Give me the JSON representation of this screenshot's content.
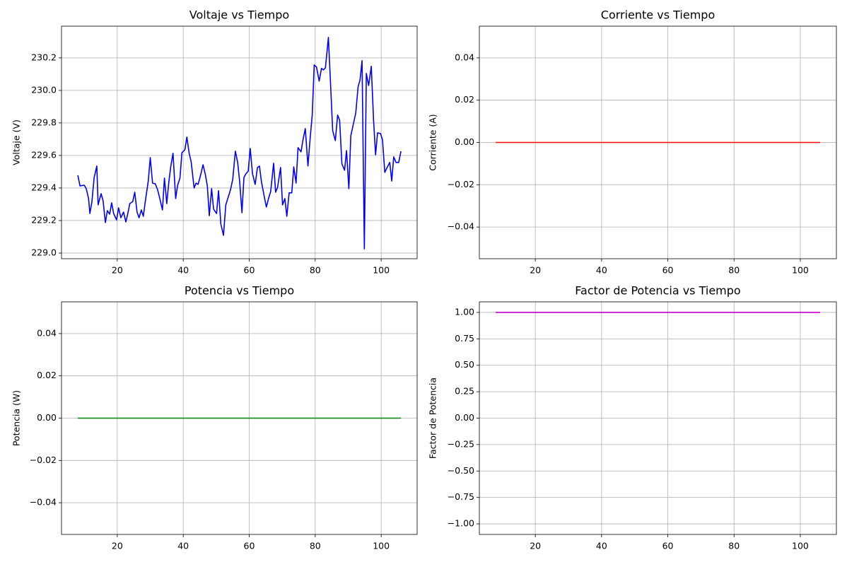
{
  "chart_data": [
    {
      "type": "line",
      "title": "Voltaje vs Tiempo",
      "ylabel": "Voltaje (V)",
      "grid": true,
      "x": [
        8.05,
        8.7,
        10.0,
        10.6,
        11.3,
        11.7,
        12.3,
        13.0,
        13.8,
        14.2,
        15.1,
        15.7,
        16.4,
        17.0,
        17.7,
        18.3,
        18.9,
        19.8,
        20.4,
        21.1,
        21.9,
        22.6,
        23.2,
        23.8,
        24.7,
        25.3,
        26.0,
        26.6,
        27.3,
        27.9,
        28.5,
        29.4,
        30.0,
        30.7,
        31.5,
        32.2,
        32.8,
        33.7,
        34.3,
        35.0,
        35.6,
        36.2,
        36.9,
        37.7,
        38.3,
        39.0,
        39.6,
        40.5,
        41.1,
        41.8,
        42.4,
        43.3,
        43.9,
        44.5,
        45.2,
        46.0,
        46.7,
        47.3,
        47.9,
        48.6,
        49.2,
        50.1,
        50.7,
        51.4,
        52.2,
        52.9,
        53.5,
        54.3,
        55.0,
        55.8,
        56.5,
        57.1,
        57.8,
        58.4,
        59.0,
        59.7,
        60.3,
        61.0,
        61.8,
        62.5,
        63.1,
        63.7,
        64.6,
        65.2,
        65.9,
        66.5,
        67.4,
        68.0,
        68.6,
        69.5,
        70.1,
        70.8,
        71.4,
        72.1,
        72.9,
        73.5,
        74.2,
        74.8,
        75.7,
        76.3,
        77.0,
        77.8,
        78.5,
        79.1,
        79.7,
        80.4,
        81.2,
        81.9,
        82.5,
        83.1,
        84.0,
        84.6,
        85.3,
        86.1,
        86.8,
        87.4,
        88.1,
        88.9,
        89.5,
        90.2,
        90.8,
        91.5,
        92.3,
        93.0,
        93.6,
        94.2,
        94.9,
        95.5,
        96.2,
        97.0,
        97.7,
        98.3,
        98.9,
        99.8,
        100.4,
        101.1,
        101.7,
        102.6,
        103.2,
        103.8,
        104.5,
        105.3,
        106.0
      ],
      "values": [
        229.478,
        229.413,
        229.417,
        229.396,
        229.335,
        229.243,
        229.313,
        229.465,
        229.535,
        229.296,
        229.365,
        229.322,
        229.187,
        229.261,
        229.239,
        229.309,
        229.243,
        229.204,
        229.278,
        229.217,
        229.252,
        229.191,
        229.243,
        229.304,
        229.317,
        229.374,
        229.252,
        229.217,
        229.265,
        229.226,
        229.317,
        229.443,
        229.587,
        229.43,
        229.426,
        229.391,
        229.343,
        229.265,
        229.461,
        229.304,
        229.43,
        229.53,
        229.613,
        229.335,
        229.417,
        229.461,
        229.617,
        229.635,
        229.713,
        229.613,
        229.561,
        229.4,
        229.43,
        229.422,
        229.474,
        229.543,
        229.483,
        229.413,
        229.23,
        229.396,
        229.27,
        229.243,
        229.383,
        229.178,
        229.109,
        229.296,
        229.335,
        229.387,
        229.452,
        229.626,
        229.557,
        229.439,
        229.248,
        229.465,
        229.487,
        229.504,
        229.643,
        229.487,
        229.422,
        229.526,
        229.535,
        229.439,
        229.343,
        229.283,
        229.339,
        229.378,
        229.552,
        229.374,
        229.404,
        229.526,
        229.296,
        229.335,
        229.226,
        229.37,
        229.37,
        229.53,
        229.43,
        229.648,
        229.622,
        229.696,
        229.765,
        229.535,
        229.713,
        229.848,
        230.157,
        230.143,
        230.057,
        230.135,
        230.126,
        230.139,
        230.326,
        230.065,
        229.752,
        229.691,
        229.848,
        229.817,
        229.548,
        229.509,
        229.63,
        229.396,
        229.722,
        229.787,
        229.861,
        230.022,
        230.065,
        230.183,
        229.026,
        230.104,
        230.03,
        230.148,
        229.813,
        229.604,
        229.739,
        229.735,
        229.696,
        229.496,
        229.522,
        229.557,
        229.443,
        229.591,
        229.557,
        229.557,
        229.626
      ],
      "color": "#0000ff",
      "xlim": [
        3.1,
        110.9
      ],
      "ylim": [
        228.965,
        230.395
      ],
      "xticks": [
        20,
        40,
        60,
        80,
        100
      ],
      "yticks": [
        {
          "value": 229,
          "label": "229.0"
        },
        229.2,
        229.4,
        229.6,
        229.8,
        {
          "value": 230,
          "label": "230.0"
        },
        230.2
      ]
    },
    {
      "type": "line",
      "title": "Corriente vs Tiempo",
      "ylabel": "Corriente (A)",
      "grid": true,
      "x": [
        8.05,
        106.0
      ],
      "values": [
        0,
        0
      ],
      "color": "#ff0000",
      "xlim": [
        3.1,
        110.9
      ],
      "ylim": [
        -0.055,
        0.055
      ],
      "xticks": [
        20,
        40,
        60,
        80,
        100
      ],
      "yticks": [
        {
          "value": -0.04,
          "label": "−0.04"
        },
        {
          "value": -0.02,
          "label": "−0.02"
        },
        {
          "value": 0,
          "label": "0.00"
        },
        0.02,
        0.04
      ]
    },
    {
      "type": "line",
      "title": "Potencia vs Tiempo",
      "ylabel": "Potencia (W)",
      "grid": true,
      "x": [
        8.05,
        106.0
      ],
      "values": [
        0,
        0
      ],
      "color": "#008000",
      "xlim": [
        3.1,
        110.9
      ],
      "ylim": [
        -0.055,
        0.055
      ],
      "xticks": [
        20,
        40,
        60,
        80,
        100
      ],
      "yticks": [
        {
          "value": -0.04,
          "label": "−0.04"
        },
        {
          "value": -0.02,
          "label": "−0.02"
        },
        {
          "value": 0,
          "label": "0.00"
        },
        0.02,
        0.04
      ]
    },
    {
      "type": "line",
      "title": "Factor de Potencia vs Tiempo",
      "ylabel": "Factor de Potencia",
      "grid": true,
      "x": [
        8.05,
        106.0
      ],
      "values": [
        1,
        1
      ],
      "color": "#bf00bf",
      "xlim": [
        3.1,
        110.9
      ],
      "ylim": [
        -1.1,
        1.1
      ],
      "xticks": [
        20,
        40,
        60,
        80,
        100
      ],
      "yticks": [
        {
          "value": -1,
          "label": "−1.00"
        },
        {
          "value": -0.75,
          "label": "−0.75"
        },
        {
          "value": -0.5,
          "label": "−0.50"
        },
        {
          "value": -0.25,
          "label": "−0.25"
        },
        {
          "value": 0,
          "label": "0.00"
        },
        0.25,
        {
          "value": 0.5,
          "label": "0.50"
        },
        0.75,
        {
          "value": 1,
          "label": "1.00"
        }
      ]
    }
  ]
}
